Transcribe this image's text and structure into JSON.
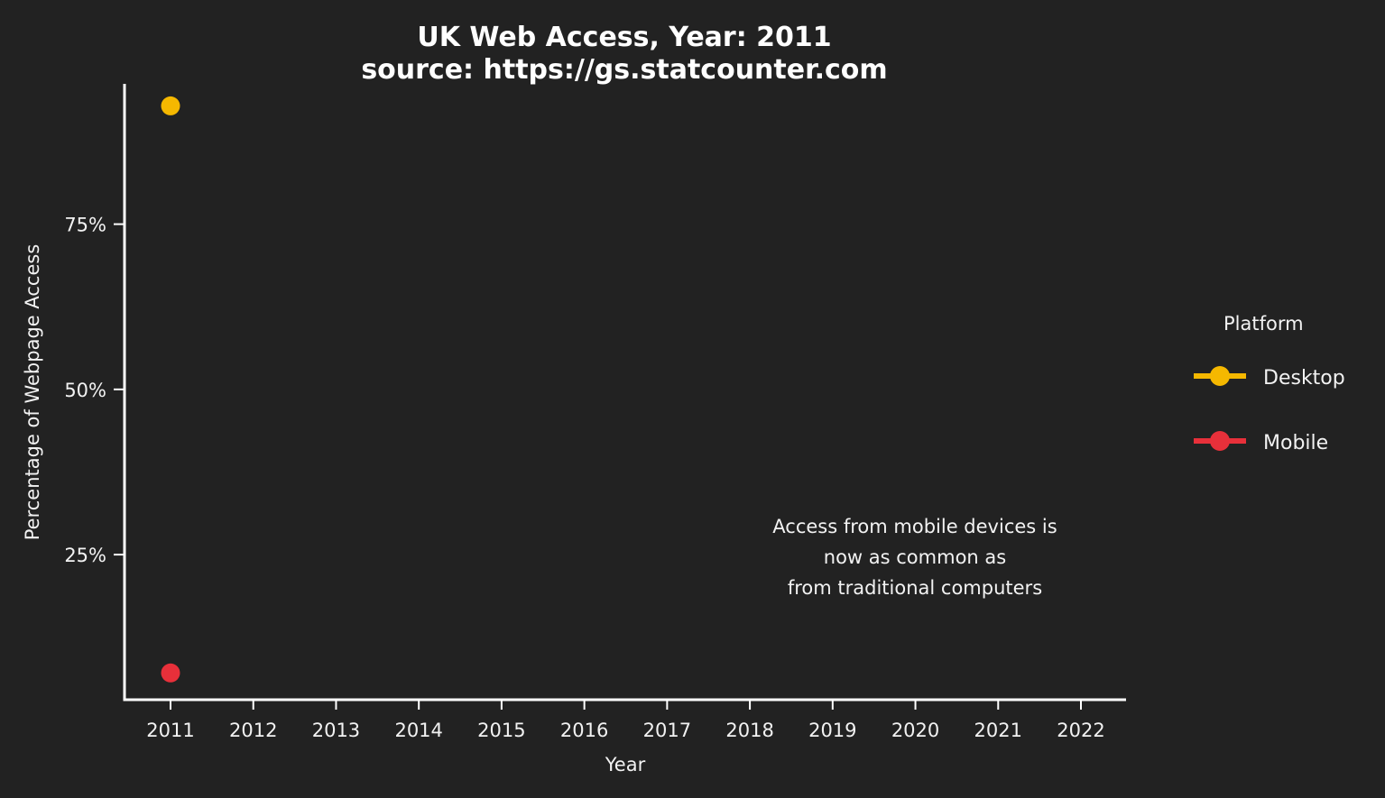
{
  "chart_data": {
    "type": "scatter",
    "title": "UK Web Access, Year: 2011",
    "subtitle": "source: https://gs.statcounter.com",
    "xlabel": "Year",
    "ylabel": "Percentage of Webpage Access",
    "x_ticks": [
      "2011",
      "2012",
      "2013",
      "2014",
      "2015",
      "2016",
      "2017",
      "2018",
      "2019",
      "2020",
      "2021",
      "2022"
    ],
    "xlim": [
      2011,
      2022
    ],
    "y_ticks": [
      {
        "value": 25,
        "label": "25%"
      },
      {
        "value": 50,
        "label": "50%"
      },
      {
        "value": 75,
        "label": "75%"
      }
    ],
    "ylim": [
      7,
      92
    ],
    "grid": false,
    "legend": {
      "title": "Platform",
      "placement": "right"
    },
    "series": [
      {
        "name": "Desktop",
        "color": "#F5B800",
        "points": [
          {
            "x": 2011,
            "y": 92.9
          }
        ]
      },
      {
        "name": "Mobile",
        "color": "#E8303A",
        "points": [
          {
            "x": 2011,
            "y": 7.1
          }
        ]
      }
    ],
    "annotation": {
      "lines": [
        "Access from mobile devices is",
        "now as common as",
        "from traditional computers"
      ],
      "anchor": {
        "x": 2020,
        "y": 25
      }
    }
  }
}
